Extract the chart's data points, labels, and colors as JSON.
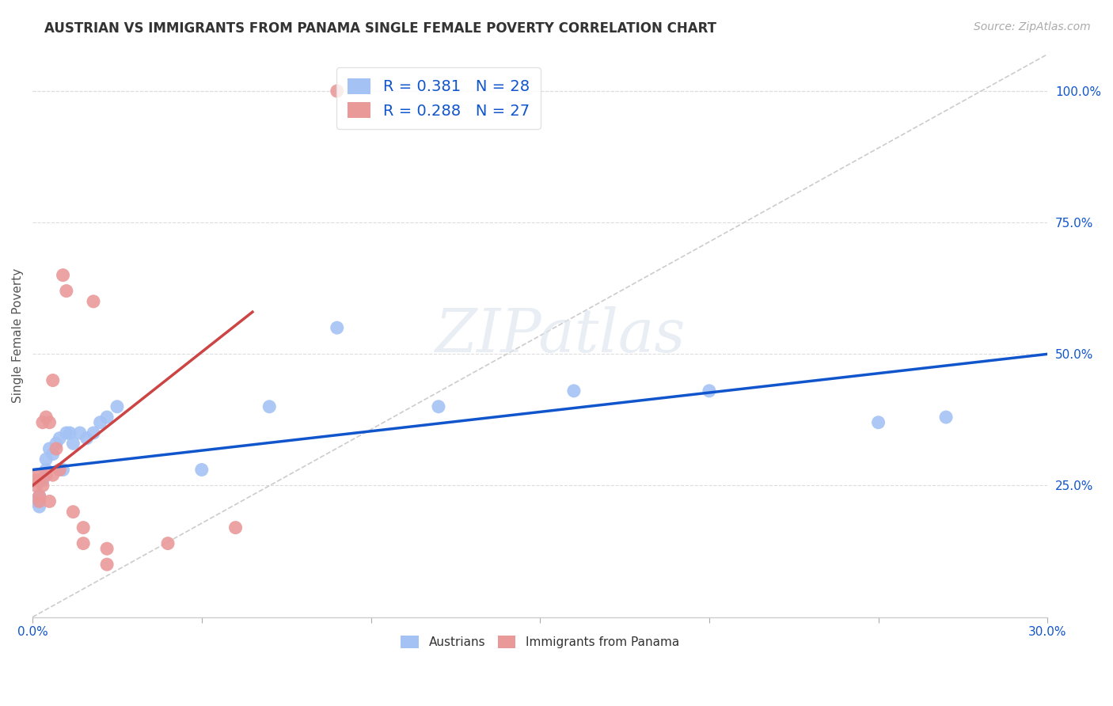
{
  "title": "AUSTRIAN VS IMMIGRANTS FROM PANAMA SINGLE FEMALE POVERTY CORRELATION CHART",
  "source": "Source: ZipAtlas.com",
  "ylabel": "Single Female Poverty",
  "right_yticks": [
    "100.0%",
    "75.0%",
    "50.0%",
    "25.0%"
  ],
  "right_ytick_vals": [
    1.0,
    0.75,
    0.5,
    0.25
  ],
  "xmin": 0.0,
  "xmax": 0.3,
  "ymin": 0.0,
  "ymax": 1.07,
  "blue_R": 0.381,
  "blue_N": 28,
  "pink_R": 0.288,
  "pink_N": 27,
  "blue_color": "#a4c2f4",
  "pink_color": "#ea9999",
  "blue_line_color": "#1155cc",
  "pink_line_color": "#cc4444",
  "ref_line_color": "#cccccc",
  "legend_R_color": "#1155cc",
  "blue_x": [
    0.001,
    0.002,
    0.002,
    0.003,
    0.004,
    0.004,
    0.005,
    0.006,
    0.007,
    0.008,
    0.009,
    0.01,
    0.011,
    0.012,
    0.014,
    0.016,
    0.018,
    0.02,
    0.022,
    0.025,
    0.05,
    0.07,
    0.09,
    0.12,
    0.16,
    0.2,
    0.25,
    0.27
  ],
  "blue_y": [
    0.22,
    0.23,
    0.21,
    0.26,
    0.28,
    0.3,
    0.32,
    0.31,
    0.33,
    0.34,
    0.28,
    0.35,
    0.35,
    0.33,
    0.35,
    0.34,
    0.35,
    0.37,
    0.38,
    0.4,
    0.28,
    0.4,
    0.55,
    0.4,
    0.43,
    0.43,
    0.37,
    0.38
  ],
  "pink_x": [
    0.001,
    0.001,
    0.001,
    0.002,
    0.002,
    0.002,
    0.003,
    0.003,
    0.004,
    0.004,
    0.005,
    0.005,
    0.006,
    0.006,
    0.007,
    0.008,
    0.009,
    0.01,
    0.012,
    0.015,
    0.015,
    0.018,
    0.022,
    0.022,
    0.04,
    0.06,
    0.09
  ],
  "pink_y": [
    0.25,
    0.26,
    0.27,
    0.22,
    0.23,
    0.26,
    0.25,
    0.37,
    0.38,
    0.27,
    0.22,
    0.37,
    0.27,
    0.45,
    0.32,
    0.28,
    0.65,
    0.62,
    0.2,
    0.14,
    0.17,
    0.6,
    0.1,
    0.13,
    0.14,
    0.17,
    1.0
  ],
  "background_color": "#ffffff",
  "grid_color": "#dddddd",
  "title_fontsize": 12,
  "source_fontsize": 10,
  "axis_label_fontsize": 11,
  "legend_fontsize": 14,
  "tick_fontsize": 11,
  "xtick_positions": [
    0.0,
    0.05,
    0.1,
    0.15,
    0.2,
    0.25,
    0.3
  ],
  "pink_line_xmax": 0.08
}
